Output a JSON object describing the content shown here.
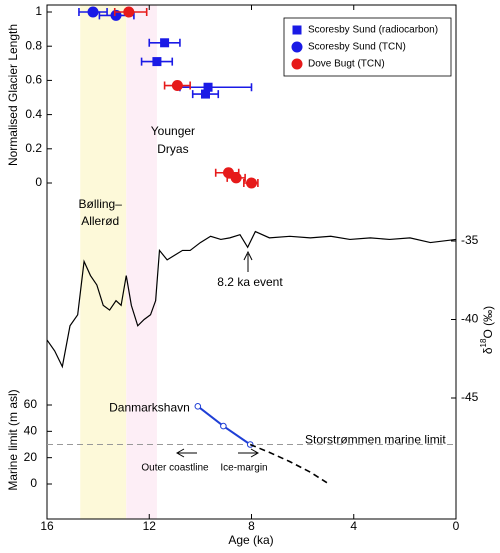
{
  "chart_data": [
    {
      "type": "scatter",
      "ylabel": "Normalised Glacier Length",
      "xlim": [
        16,
        0
      ],
      "ylim": [
        0,
        1
      ],
      "yticks": [
        0,
        0.2,
        0.4,
        0.6,
        0.8,
        1
      ],
      "bands": [
        {
          "label": [
            "Bølling–",
            "Allerød"
          ],
          "start": 14.7,
          "end": 12.9,
          "color": "#fdf9d9"
        },
        {
          "label": [
            "Younger",
            "Dryas"
          ],
          "start": 12.9,
          "end": 11.7,
          "color": "#fdeef6"
        }
      ],
      "legend": "upper right",
      "series": [
        {
          "name": "Scoresby Sund (radiocarbon)",
          "marker": "square",
          "color": "#1a1ae6",
          "x": [
            11.4,
            11.7,
            9.7,
            9.8
          ],
          "values": [
            0.82,
            0.71,
            0.56,
            0.52
          ],
          "xerr": [
            [
              0.6,
              0.6
            ],
            [
              0.6,
              0.6
            ],
            [
              1.1,
              1.7
            ],
            [
              0.5,
              0.5
            ]
          ]
        },
        {
          "name": "Scoresby Sund (TCN)",
          "marker": "circle",
          "color": "#1a1ae6",
          "x": [
            14.2,
            13.3
          ],
          "values": [
            1,
            0.98
          ],
          "xerr": [
            [
              0.55,
              0.55
            ],
            [
              0.65,
              0.7
            ]
          ]
        },
        {
          "name": "Dove Bugt (TCN)",
          "marker": "circle",
          "color": "#e61a1a",
          "x": [
            12.8,
            10.9,
            8.9,
            8.6,
            8.0
          ],
          "values": [
            1,
            0.57,
            0.06,
            0.03,
            0
          ],
          "xerr": [
            [
              0.55,
              0.7
            ],
            [
              0.5,
              0.5
            ],
            [
              0.5,
              0.4
            ],
            [
              0.35,
              0.35
            ],
            [
              0.3,
              0.25
            ]
          ]
        }
      ]
    },
    {
      "type": "line",
      "y2label": [
        "δ",
        "18",
        "O (‰)"
      ],
      "xlim": [
        16,
        0
      ],
      "y2lim": [
        -46,
        -33
      ],
      "y2ticks": [
        -45,
        -40,
        -35
      ],
      "annotation": "8.2 ka event",
      "series": [
        {
          "color": "#000000",
          "axis": "y2",
          "x": [
            16,
            15.7,
            15.4,
            15.1,
            14.8,
            14.55,
            14.3,
            14.05,
            13.8,
            13.55,
            13.3,
            13.1,
            12.9,
            12.7,
            12.45,
            12.2,
            11.95,
            11.75,
            11.6,
            11.3,
            11.0,
            10.7,
            10.4,
            10.0,
            9.6,
            9.2,
            8.85,
            8.45,
            8.15,
            7.85,
            7.3,
            6.5,
            5.7,
            4.9,
            4.15,
            3.35,
            2.6,
            1.8,
            1.0,
            0
          ],
          "values": [
            -41.3,
            -42,
            -43,
            -40.4,
            -39.7,
            -36.3,
            -37.2,
            -37.8,
            -39.1,
            -39.4,
            -38.8,
            -39.1,
            -37.2,
            -39.1,
            -40.4,
            -40,
            -39.7,
            -38.8,
            -35.6,
            -36.2,
            -35.9,
            -35.6,
            -35.6,
            -35.1,
            -34.7,
            -34.9,
            -34.8,
            -34.6,
            -35.4,
            -34.4,
            -34.8,
            -34.7,
            -34.8,
            -34.7,
            -34.9,
            -34.8,
            -34.9,
            -34.8,
            -35.1,
            -34.9
          ]
        }
      ]
    },
    {
      "type": "line",
      "ylabel": "Marine limit (m asl)",
      "xlabel": "Age (ka)",
      "xlim": [
        16,
        0
      ],
      "xticks": [
        16,
        12,
        8,
        4,
        0
      ],
      "ylim": [
        0,
        60
      ],
      "yticks": [
        0,
        20,
        40,
        60
      ],
      "hlines": [
        {
          "label": "Storstrømmen marine limit",
          "value": 30,
          "color": "#999999"
        }
      ],
      "annotations": [
        "Outer coastline",
        "Ice-margin"
      ],
      "series": [
        {
          "name": "Danmarkshavn",
          "color": "#1f3fd6",
          "marker": "open-circle",
          "x": [
            10.1,
            9.1,
            8.05
          ],
          "values": [
            59,
            44,
            30
          ]
        },
        {
          "color": "#000000",
          "dashed": true,
          "x": [
            8.05,
            7.3,
            6.5,
            5.7,
            5.05
          ],
          "values": [
            30,
            24,
            17,
            9,
            1
          ]
        }
      ]
    }
  ]
}
